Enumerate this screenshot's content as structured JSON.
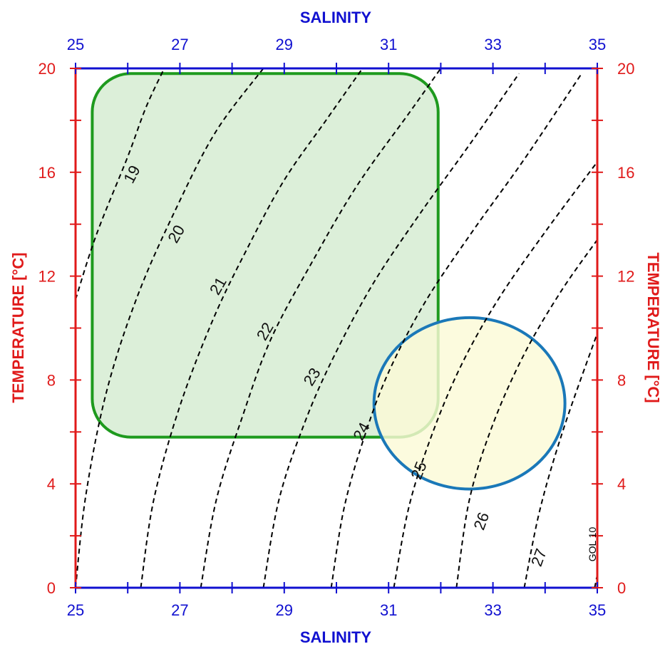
{
  "chart_data": {
    "type": "line",
    "title": "",
    "xlabel": "SALINITY",
    "ylabel": "TEMPERATURE [°C]",
    "xlim": [
      25,
      35
    ],
    "ylim": [
      0,
      20
    ],
    "x_ticks": [
      "25",
      "27",
      "29",
      "31",
      "33",
      "35"
    ],
    "y_ticks": [
      "0",
      "4",
      "8",
      "12",
      "16",
      "20"
    ],
    "isopycnals": [
      {
        "label": "19",
        "points": [
          [
            25.0,
            11.1
          ],
          [
            25.4,
            13.6
          ],
          [
            26.0,
            16.6
          ],
          [
            26.35,
            18.5
          ],
          [
            26.7,
            20.0
          ]
        ]
      },
      {
        "label": "20",
        "points": [
          [
            25.0,
            0.0
          ],
          [
            25.2,
            3.6
          ],
          [
            25.6,
            7.6
          ],
          [
            26.2,
            11.3
          ],
          [
            26.95,
            14.7
          ],
          [
            27.7,
            17.6
          ],
          [
            28.6,
            20.0
          ]
        ]
      },
      {
        "label": "21",
        "points": [
          [
            26.25,
            0.0
          ],
          [
            26.5,
            3.4
          ],
          [
            27.0,
            7.0
          ],
          [
            27.65,
            10.4
          ],
          [
            28.3,
            13.1
          ],
          [
            29.0,
            15.7
          ],
          [
            29.8,
            18.0
          ],
          [
            30.5,
            20.0
          ]
        ]
      },
      {
        "label": "22",
        "points": [
          [
            27.4,
            0.0
          ],
          [
            27.7,
            3.4
          ],
          [
            28.2,
            6.6
          ],
          [
            28.75,
            9.6
          ],
          [
            29.55,
            12.6
          ],
          [
            30.4,
            15.5
          ],
          [
            31.4,
            18.3
          ],
          [
            32.0,
            20.0
          ]
        ]
      },
      {
        "label": "23",
        "points": [
          [
            28.6,
            0.0
          ],
          [
            28.9,
            3.4
          ],
          [
            29.4,
            6.4
          ],
          [
            29.95,
            8.9
          ],
          [
            30.7,
            11.7
          ],
          [
            31.6,
            14.4
          ],
          [
            32.6,
            17.2
          ],
          [
            33.5,
            19.8
          ]
        ]
      },
      {
        "label": "24",
        "points": [
          [
            29.9,
            0.0
          ],
          [
            30.15,
            3.1
          ],
          [
            30.55,
            5.9
          ],
          [
            31.0,
            8.3
          ],
          [
            31.7,
            11.0
          ],
          [
            32.6,
            13.7
          ],
          [
            33.6,
            16.5
          ],
          [
            34.7,
            19.8
          ]
        ]
      },
      {
        "label": "25",
        "points": [
          [
            31.1,
            0.0
          ],
          [
            31.4,
            3.2
          ],
          [
            31.85,
            6.0
          ],
          [
            32.4,
            8.6
          ],
          [
            33.1,
            11.1
          ],
          [
            34.0,
            13.7
          ],
          [
            35.0,
            16.4
          ]
        ]
      },
      {
        "label": "26",
        "points": [
          [
            32.3,
            0.0
          ],
          [
            32.55,
            3.4
          ],
          [
            33.0,
            6.3
          ],
          [
            33.6,
            9.0
          ],
          [
            34.3,
            11.4
          ],
          [
            35.0,
            13.4
          ]
        ]
      },
      {
        "label": "27",
        "points": [
          [
            33.6,
            0.0
          ],
          [
            33.9,
            3.0
          ],
          [
            34.35,
            6.1
          ],
          [
            35.0,
            9.8
          ]
        ]
      },
      {
        "label": "",
        "points": [
          [
            34.95,
            0.0
          ],
          [
            35.0,
            0.5
          ]
        ]
      }
    ],
    "isopycnal_labels": [
      {
        "text": "19",
        "x": 26.1,
        "y": 15.9,
        "angle": -62
      },
      {
        "text": "20",
        "x": 26.95,
        "y": 13.6,
        "angle": -60
      },
      {
        "text": "21",
        "x": 27.75,
        "y": 11.6,
        "angle": -60
      },
      {
        "text": "22",
        "x": 28.65,
        "y": 9.85,
        "angle": -60
      },
      {
        "text": "23",
        "x": 29.55,
        "y": 8.1,
        "angle": -58
      },
      {
        "text": "24",
        "x": 30.5,
        "y": 6.0,
        "angle": -62
      },
      {
        "text": "25",
        "x": 31.6,
        "y": 4.5,
        "angle": -68
      },
      {
        "text": "26",
        "x": 32.8,
        "y": 2.55,
        "angle": -70
      },
      {
        "text": "27",
        "x": 33.9,
        "y": 1.15,
        "angle": -70
      }
    ],
    "regions": [
      {
        "shape": "rounded-rectangle",
        "x_range": [
          25.32,
          31.95
        ],
        "y_range": [
          5.8,
          19.8
        ],
        "fill": "#dcefd9",
        "stroke": "#1e9a1e"
      },
      {
        "shape": "ellipse",
        "center": [
          32.55,
          7.1
        ],
        "radius_x": 1.83,
        "radius_y": 3.3,
        "fill": "#fbfad7",
        "stroke": "#1a78b8"
      }
    ],
    "annotation": "GOL 10",
    "colors": {
      "axis_salinity": "#1010d0",
      "axis_temperature": "#e01a1a",
      "isopycnal": "#000000",
      "region_green_stroke": "#1e9a1e",
      "region_green_fill": "#dcefd9",
      "region_ellipse_stroke": "#1a78b8",
      "region_ellipse_fill": "#fbfad7"
    }
  }
}
